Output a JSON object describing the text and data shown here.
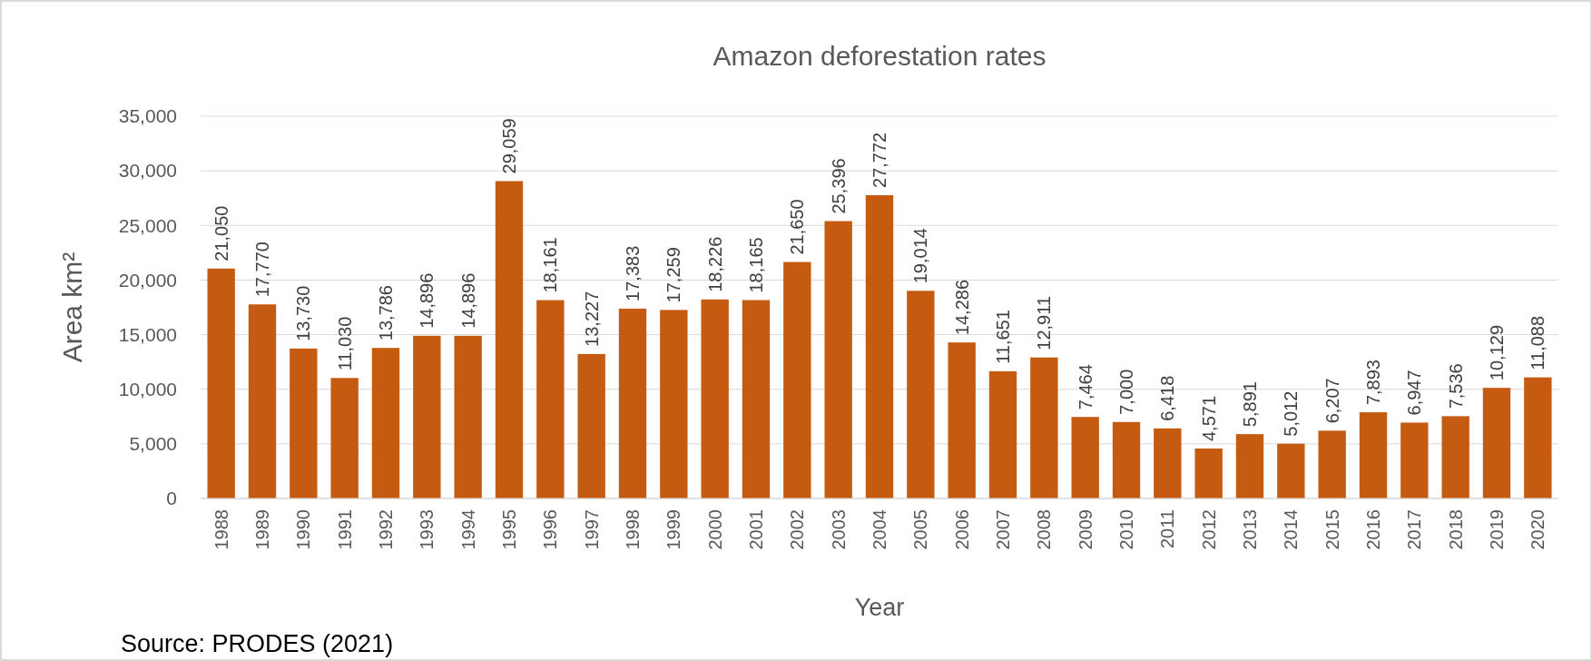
{
  "chart_data": {
    "type": "bar",
    "title": "Amazon deforestation rates",
    "xlabel": "Year",
    "ylabel": "Area km²",
    "categories": [
      "1988",
      "1989",
      "1990",
      "1991",
      "1992",
      "1993",
      "1994",
      "1995",
      "1996",
      "1997",
      "1998",
      "1999",
      "2000",
      "2001",
      "2002",
      "2003",
      "2004",
      "2005",
      "2006",
      "2007",
      "2008",
      "2009",
      "2010",
      "2011",
      "2012",
      "2013",
      "2014",
      "2015",
      "2016",
      "2017",
      "2018",
      "2019",
      "2020"
    ],
    "values": [
      21050,
      17770,
      13730,
      11030,
      13786,
      14896,
      14896,
      29059,
      18161,
      13227,
      17383,
      17259,
      18226,
      18165,
      21650,
      25396,
      27772,
      19014,
      14286,
      11651,
      12911,
      7464,
      7000,
      6418,
      4571,
      5891,
      5012,
      6207,
      7893,
      6947,
      7536,
      10129,
      11088
    ],
    "color": "#c55a11",
    "ylim": [
      0,
      35000
    ],
    "yticks": [
      {
        "value": 0,
        "label": "0"
      },
      {
        "value": 5000,
        "label": "5,000"
      },
      {
        "value": 10000,
        "label": "10,000"
      },
      {
        "value": 15000,
        "label": "15,000"
      },
      {
        "value": 20000,
        "label": "20,000"
      },
      {
        "value": 25000,
        "label": "25,000"
      },
      {
        "value": 30000,
        "label": "30,000"
      },
      {
        "value": 35000,
        "label": "35,000"
      }
    ],
    "value_labels": [
      "21,050",
      "17,770",
      "13,730",
      "11,030",
      "13,786",
      "14,896",
      "14,896",
      "29,059",
      "18,161",
      "13,227",
      "17,383",
      "17,259",
      "18,226",
      "18,165",
      "21,650",
      "25,396",
      "27,772",
      "19,014",
      "14,286",
      "11,651",
      "12,911",
      "7,464",
      "7,000",
      "6,418",
      "4,571",
      "5,891",
      "5,012",
      "6,207",
      "7,893",
      "6,947",
      "7,536",
      "10,129",
      "11,088"
    ],
    "grid": "y",
    "annotations": [
      "Source: PRODES (2021)"
    ]
  }
}
